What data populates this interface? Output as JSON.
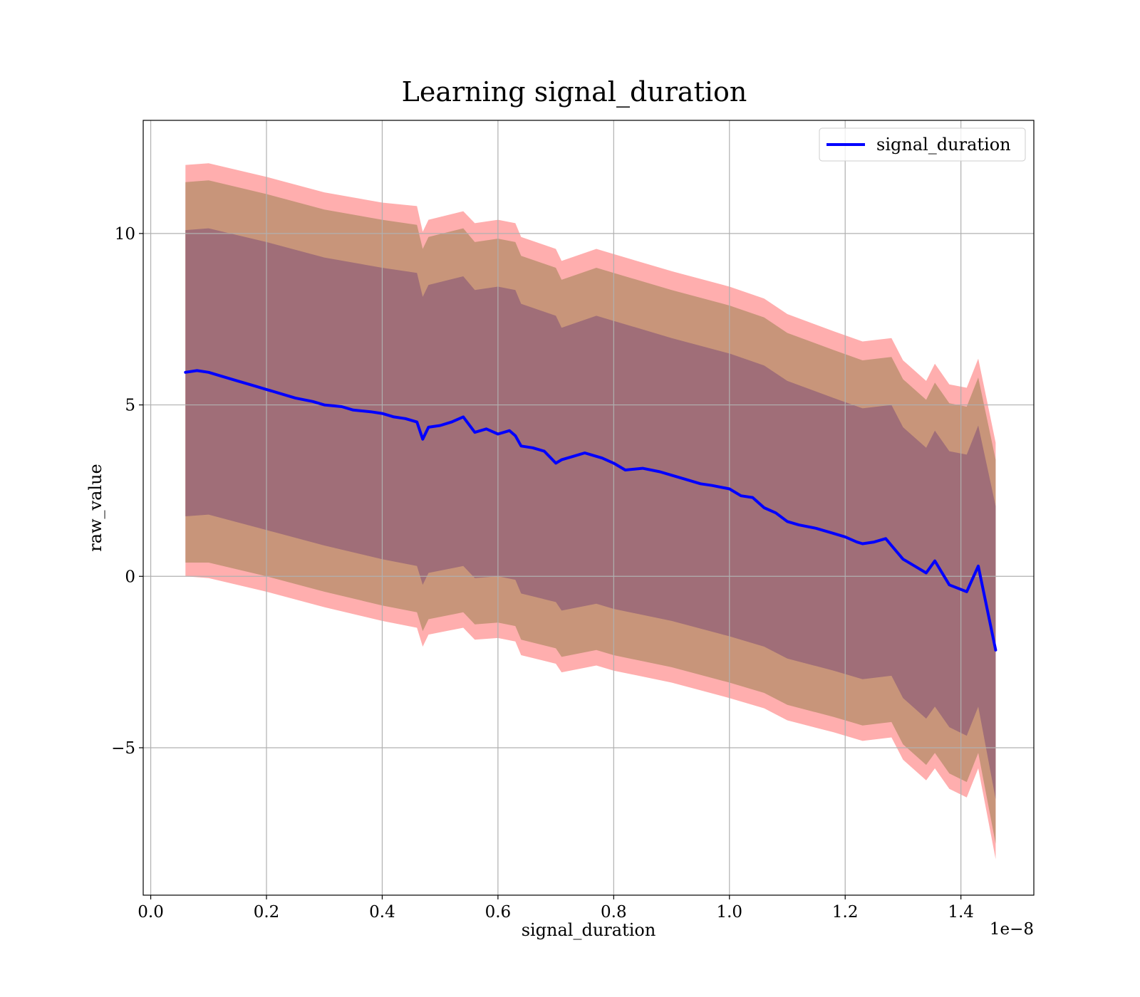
{
  "chart_data": {
    "type": "area",
    "title": "Learning signal_duration",
    "xlabel": "signal_duration",
    "ylabel": "raw_value",
    "x_offset_label": "1e−8",
    "xlim": [
      -0.013,
      1.526
    ],
    "ylim": [
      -9.3,
      13.3
    ],
    "x_ticks": [
      0.0,
      0.2,
      0.4,
      0.6,
      0.8,
      1.0,
      1.2,
      1.4
    ],
    "x_tick_labels": [
      "0.0",
      "0.2",
      "0.4",
      "0.6",
      "0.8",
      "1.0",
      "1.2",
      "1.4"
    ],
    "y_ticks": [
      -5,
      0,
      5,
      10
    ],
    "y_tick_labels": [
      "−5",
      "0",
      "5",
      "10"
    ],
    "grid": true,
    "legend_position": "top-right",
    "colors": {
      "line": "#0000ff",
      "band_outer": "#ff6b6b",
      "band_middle": "#c8957a",
      "band_inner": "#a06e78"
    },
    "series": [
      {
        "name": "signal_duration",
        "x": [
          0.06,
          0.08,
          0.1,
          0.12,
          0.15,
          0.18,
          0.2,
          0.22,
          0.25,
          0.28,
          0.3,
          0.33,
          0.35,
          0.38,
          0.4,
          0.42,
          0.44,
          0.46,
          0.47,
          0.48,
          0.5,
          0.52,
          0.54,
          0.56,
          0.58,
          0.6,
          0.62,
          0.63,
          0.64,
          0.66,
          0.68,
          0.7,
          0.71,
          0.73,
          0.75,
          0.77,
          0.78,
          0.8,
          0.82,
          0.85,
          0.88,
          0.9,
          0.92,
          0.95,
          0.97,
          1.0,
          1.02,
          1.04,
          1.06,
          1.08,
          1.1,
          1.12,
          1.15,
          1.18,
          1.2,
          1.22,
          1.23,
          1.25,
          1.27,
          1.28,
          1.3,
          1.32,
          1.34,
          1.355,
          1.38,
          1.41,
          1.43,
          1.46
        ],
        "y": [
          5.95,
          6.0,
          5.95,
          5.85,
          5.7,
          5.55,
          5.45,
          5.35,
          5.2,
          5.1,
          5.0,
          4.95,
          4.85,
          4.8,
          4.75,
          4.65,
          4.6,
          4.5,
          4.0,
          4.35,
          4.4,
          4.5,
          4.65,
          4.2,
          4.3,
          4.15,
          4.25,
          4.1,
          3.8,
          3.75,
          3.65,
          3.3,
          3.4,
          3.5,
          3.6,
          3.5,
          3.45,
          3.3,
          3.1,
          3.15,
          3.05,
          2.95,
          2.85,
          2.7,
          2.65,
          2.55,
          2.35,
          2.3,
          2.0,
          1.85,
          1.6,
          1.5,
          1.4,
          1.25,
          1.15,
          1.0,
          0.95,
          1.0,
          1.1,
          0.9,
          0.5,
          0.3,
          0.1,
          0.45,
          -0.25,
          -0.45,
          0.3,
          -2.15
        ]
      }
    ],
    "bands": [
      {
        "x": [
          0.06,
          0.1,
          0.2,
          0.3,
          0.4,
          0.46,
          0.47,
          0.48,
          0.54,
          0.56,
          0.6,
          0.63,
          0.64,
          0.7,
          0.71,
          0.77,
          0.8,
          0.9,
          1.0,
          1.06,
          1.1,
          1.18,
          1.23,
          1.28,
          1.3,
          1.34,
          1.355,
          1.38,
          1.41,
          1.43,
          1.46
        ],
        "upper": [
          12.0,
          12.05,
          11.65,
          11.2,
          10.9,
          10.8,
          10.05,
          10.4,
          10.65,
          10.3,
          10.4,
          10.3,
          9.9,
          9.55,
          9.2,
          9.55,
          9.4,
          8.9,
          8.45,
          8.1,
          7.65,
          7.15,
          6.85,
          6.95,
          6.3,
          5.7,
          6.2,
          5.6,
          5.5,
          6.35,
          3.9
        ],
        "lower": [
          0.0,
          -0.05,
          -0.45,
          -0.9,
          -1.3,
          -1.5,
          -2.05,
          -1.7,
          -1.5,
          -1.85,
          -1.8,
          -1.9,
          -2.3,
          -2.55,
          -2.8,
          -2.6,
          -2.75,
          -3.1,
          -3.55,
          -3.85,
          -4.2,
          -4.55,
          -4.8,
          -4.7,
          -5.35,
          -5.95,
          -5.6,
          -6.2,
          -6.45,
          -5.6,
          -8.25
        ]
      },
      {
        "x": [
          0.06,
          0.1,
          0.2,
          0.3,
          0.4,
          0.46,
          0.47,
          0.48,
          0.54,
          0.56,
          0.6,
          0.63,
          0.64,
          0.7,
          0.71,
          0.77,
          0.8,
          0.9,
          1.0,
          1.06,
          1.1,
          1.18,
          1.23,
          1.28,
          1.3,
          1.34,
          1.355,
          1.38,
          1.41,
          1.43,
          1.46
        ],
        "upper": [
          11.5,
          11.55,
          11.15,
          10.7,
          10.4,
          10.25,
          9.55,
          9.9,
          10.15,
          9.75,
          9.85,
          9.75,
          9.35,
          9.0,
          8.65,
          9.0,
          8.85,
          8.35,
          7.9,
          7.55,
          7.1,
          6.6,
          6.3,
          6.4,
          5.75,
          5.15,
          5.65,
          5.05,
          4.95,
          5.8,
          3.4
        ],
        "lower": [
          0.4,
          0.4,
          0.0,
          -0.45,
          -0.85,
          -1.05,
          -1.6,
          -1.25,
          -1.05,
          -1.4,
          -1.35,
          -1.45,
          -1.85,
          -2.1,
          -2.35,
          -2.15,
          -2.3,
          -2.65,
          -3.1,
          -3.4,
          -3.75,
          -4.1,
          -4.35,
          -4.25,
          -4.9,
          -5.5,
          -5.15,
          -5.75,
          -6.0,
          -5.15,
          -7.8
        ]
      },
      {
        "x": [
          0.06,
          0.1,
          0.2,
          0.3,
          0.4,
          0.46,
          0.47,
          0.48,
          0.54,
          0.56,
          0.6,
          0.63,
          0.64,
          0.7,
          0.71,
          0.77,
          0.8,
          0.9,
          1.0,
          1.06,
          1.1,
          1.18,
          1.23,
          1.28,
          1.3,
          1.34,
          1.355,
          1.38,
          1.41,
          1.43,
          1.46
        ],
        "upper": [
          10.1,
          10.15,
          9.75,
          9.3,
          9.0,
          8.85,
          8.15,
          8.5,
          8.75,
          8.35,
          8.45,
          8.35,
          7.95,
          7.6,
          7.25,
          7.6,
          7.45,
          6.95,
          6.5,
          6.15,
          5.7,
          5.2,
          4.9,
          5.0,
          4.35,
          3.75,
          4.25,
          3.65,
          3.55,
          4.4,
          2.05
        ],
        "lower": [
          1.75,
          1.8,
          1.35,
          0.9,
          0.5,
          0.3,
          -0.25,
          0.1,
          0.3,
          -0.05,
          0.0,
          -0.1,
          -0.5,
          -0.75,
          -1.0,
          -0.8,
          -0.95,
          -1.3,
          -1.75,
          -2.05,
          -2.4,
          -2.75,
          -3.0,
          -2.9,
          -3.55,
          -4.15,
          -3.8,
          -4.4,
          -4.65,
          -3.8,
          -6.5
        ]
      }
    ]
  }
}
